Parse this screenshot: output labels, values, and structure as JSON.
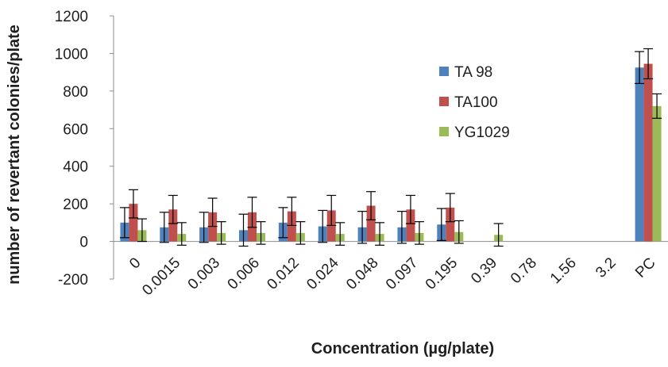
{
  "chart_data": {
    "type": "bar",
    "xlabel": "Concentration (µg/plate)",
    "ylabel": "number of revertant colonies/plate",
    "ylim": [
      -200,
      1200
    ],
    "yticks": [
      -200,
      0,
      200,
      400,
      600,
      800,
      1000,
      1200
    ],
    "categories": [
      "0",
      "0.0015",
      "0.003",
      "0.006",
      "0.012",
      "0.024",
      "0.048",
      "0.097",
      "0.195",
      "0.39",
      "0.78",
      "1.56",
      "3.2",
      "PC"
    ],
    "series": [
      {
        "name": "TA 98",
        "color": "#4f81bd",
        "values": [
          100,
          75,
          75,
          60,
          100,
          80,
          75,
          75,
          90,
          null,
          null,
          null,
          null,
          925
        ],
        "errors": [
          80,
          80,
          80,
          85,
          80,
          85,
          85,
          85,
          85,
          null,
          null,
          null,
          null,
          85
        ]
      },
      {
        "name": "TA100",
        "color": "#c0504d",
        "values": [
          200,
          170,
          155,
          155,
          160,
          165,
          190,
          170,
          180,
          null,
          null,
          null,
          null,
          945
        ],
        "errors": [
          75,
          75,
          75,
          80,
          75,
          80,
          75,
          75,
          75,
          null,
          null,
          null,
          null,
          80
        ]
      },
      {
        "name": "YG1029",
        "color": "#9bbb59",
        "values": [
          60,
          40,
          45,
          45,
          45,
          40,
          40,
          45,
          50,
          35,
          null,
          null,
          null,
          720
        ],
        "errors": [
          60,
          60,
          60,
          60,
          60,
          60,
          60,
          60,
          60,
          60,
          null,
          null,
          null,
          65
        ]
      }
    ],
    "legend_position": "right-center",
    "grid": false
  }
}
